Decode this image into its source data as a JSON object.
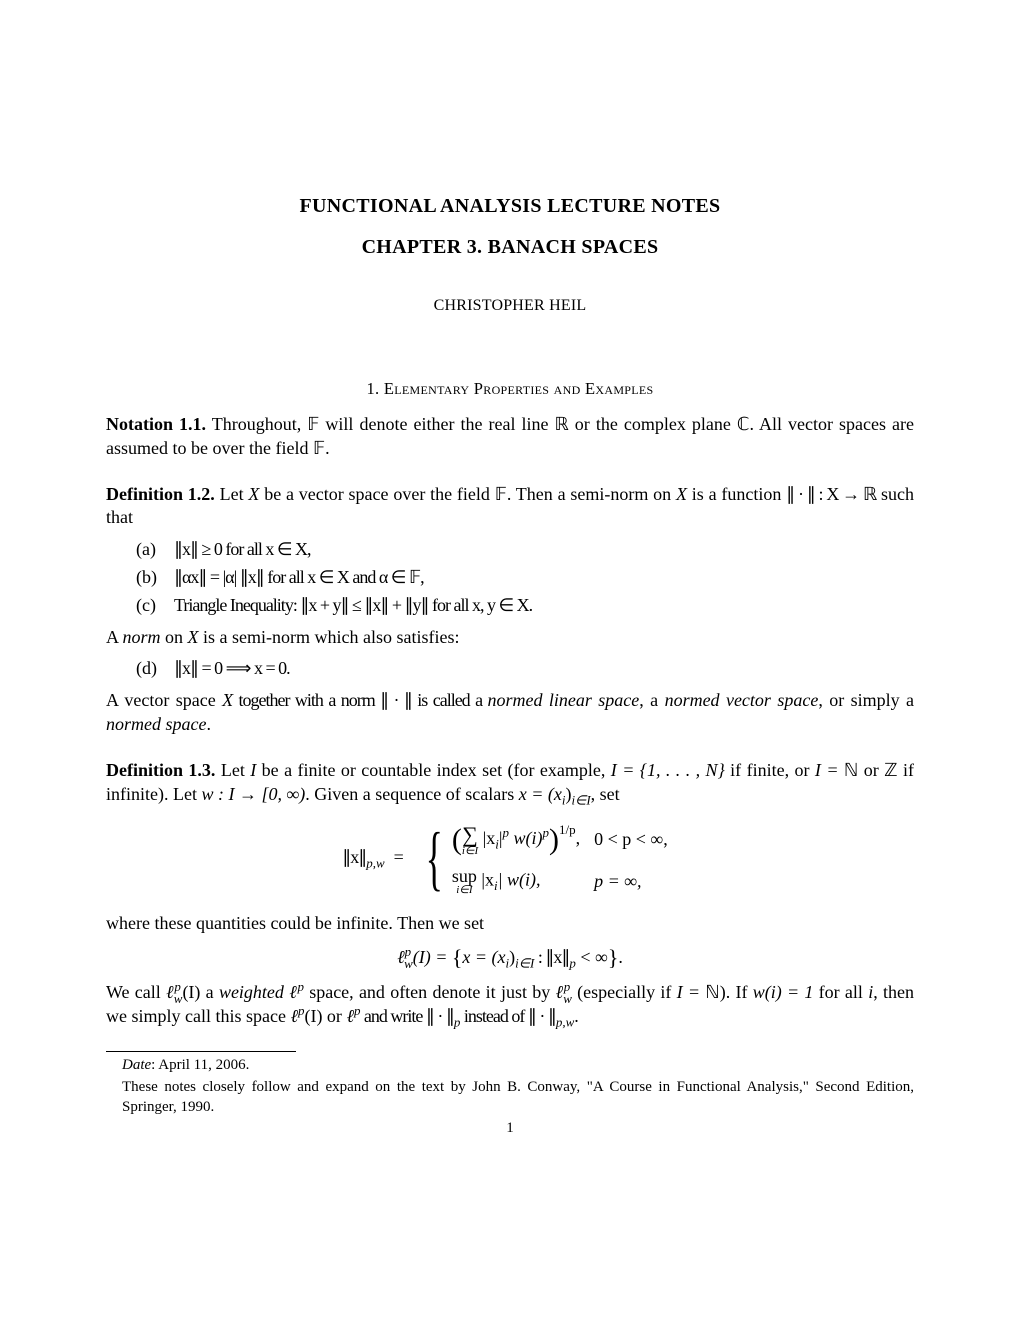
{
  "title_line1": "FUNCTIONAL ANALYSIS LECTURE NOTES",
  "title_line2": "CHAPTER 3. BANACH SPACES",
  "author": "CHRISTOPHER HEIL",
  "section_number": "1.",
  "section_title": "Elementary Properties and Examples",
  "notation": {
    "label": "Notation 1.1.",
    "text_a": " Throughout, ",
    "field_F": "𝔽",
    "text_b": " will denote either the real line ",
    "real_R": "ℝ",
    "text_c": " or the complex plane ",
    "complex_C": "ℂ",
    "text_d": ". All vector spaces are assumed to be over the field ",
    "text_e": "."
  },
  "def12": {
    "label": "Definition 1.2.",
    "text_a": " Let ",
    "X": "X",
    "text_b": " be a vector space over the field ",
    "F": "𝔽",
    "text_c": ". Then a semi-norm on ",
    "text_d": " is a function ",
    "norm_fn": "∥ · ∥ : X → ℝ",
    "text_e": " such that",
    "items": [
      {
        "label": "(a)",
        "body": "∥x∥ ≥ 0 for all x ∈ X,"
      },
      {
        "label": "(b)",
        "body": "∥αx∥ = |α| ∥x∥ for all x ∈ X and α ∈ 𝔽,"
      },
      {
        "label": "(c)",
        "body": "Triangle Inequality: ∥x + y∥ ≤ ∥x∥ + ∥y∥ for all x, y ∈ X."
      }
    ],
    "mid1": "A ",
    "norm_word": "norm",
    "mid2": " on ",
    "mid3": " is a semi-norm which also satisfies:",
    "item_d": {
      "label": "(d)",
      "body": "∥x∥ = 0  ⟹  x = 0."
    },
    "tail_a": "A vector space ",
    "tail_b": " together with a norm ∥ · ∥ is called a ",
    "nls": "normed linear space",
    "tail_c": ", a ",
    "nvs": "normed vector space",
    "tail_d": ", or simply a ",
    "ns": "normed space",
    "tail_e": "."
  },
  "def13": {
    "label": "Definition 1.3.",
    "text_a": " Let ",
    "I": "I",
    "text_b": " be a finite or countable index set (for example, ",
    "ex1": "I = {1, . . . , N}",
    "text_c": " if finite, or ",
    "ex2a": "I = ",
    "N": "ℕ",
    "ex2b": " or ",
    "Z": "ℤ",
    "ex2c": " if infinite). Let ",
    "wmap": "w : I → [0, ∞)",
    "text_d": ". Given a sequence of scalars ",
    "xseq": "x = (x",
    "xseq_sub": "i",
    "xseq2": ")",
    "xseq2_sub": "i∈I",
    "text_e": ", set",
    "disp_lhs": "∥x∥",
    "disp_lhs_sub": "p,w",
    "case1_exp": "1/p",
    "case1_body_a": "|x",
    "case1_body_b": "|",
    "case1_body_c": " w(i)",
    "case1_sumlim": "i∈I",
    "case1_cond": "0 < p < ∞,",
    "case2_sup": "sup",
    "case2_lim": "i∈I",
    "case2_body": " |x",
    "case2_body2": "| w(i),",
    "case2_cond": "p = ∞,",
    "mid": "where these quantities could be infinite. Then we set",
    "disp2_lhs_a": "ℓ",
    "disp2_sup": "p",
    "disp2_sub": "w",
    "disp2_lhs_b": "(I)  =  ",
    "disp2_set_a": "x = (x",
    "disp2_set_b": ")",
    "disp2_set_c": " : ∥x∥",
    "disp2_set_d": " < ∞",
    "tail_a": "We call ",
    "lpw": "ℓ",
    "tail_b": "(I) a ",
    "weighted": "weighted ℓ",
    "tail_c": " space, and often denote it just by ",
    "tail_d": " (especially if ",
    "IN": "I = ",
    "tail_e": "). If ",
    "wi1": "w(i) = 1",
    "tail_f": " for all ",
    "tail_g": ", then we simply call this space ",
    "tail_h": "(I) or ",
    "tail_i": " and write ∥ · ∥",
    "tail_j": " instead of ∥ · ∥",
    "tail_k": "."
  },
  "footnotes": {
    "date_label": "Date",
    "date_text": ": April 11, 2006.",
    "ack": "These notes closely follow and expand on the text by John B. Conway, \"A Course in Functional Analysis,\" Second Edition, Springer, 1990."
  },
  "page_number": "1"
}
